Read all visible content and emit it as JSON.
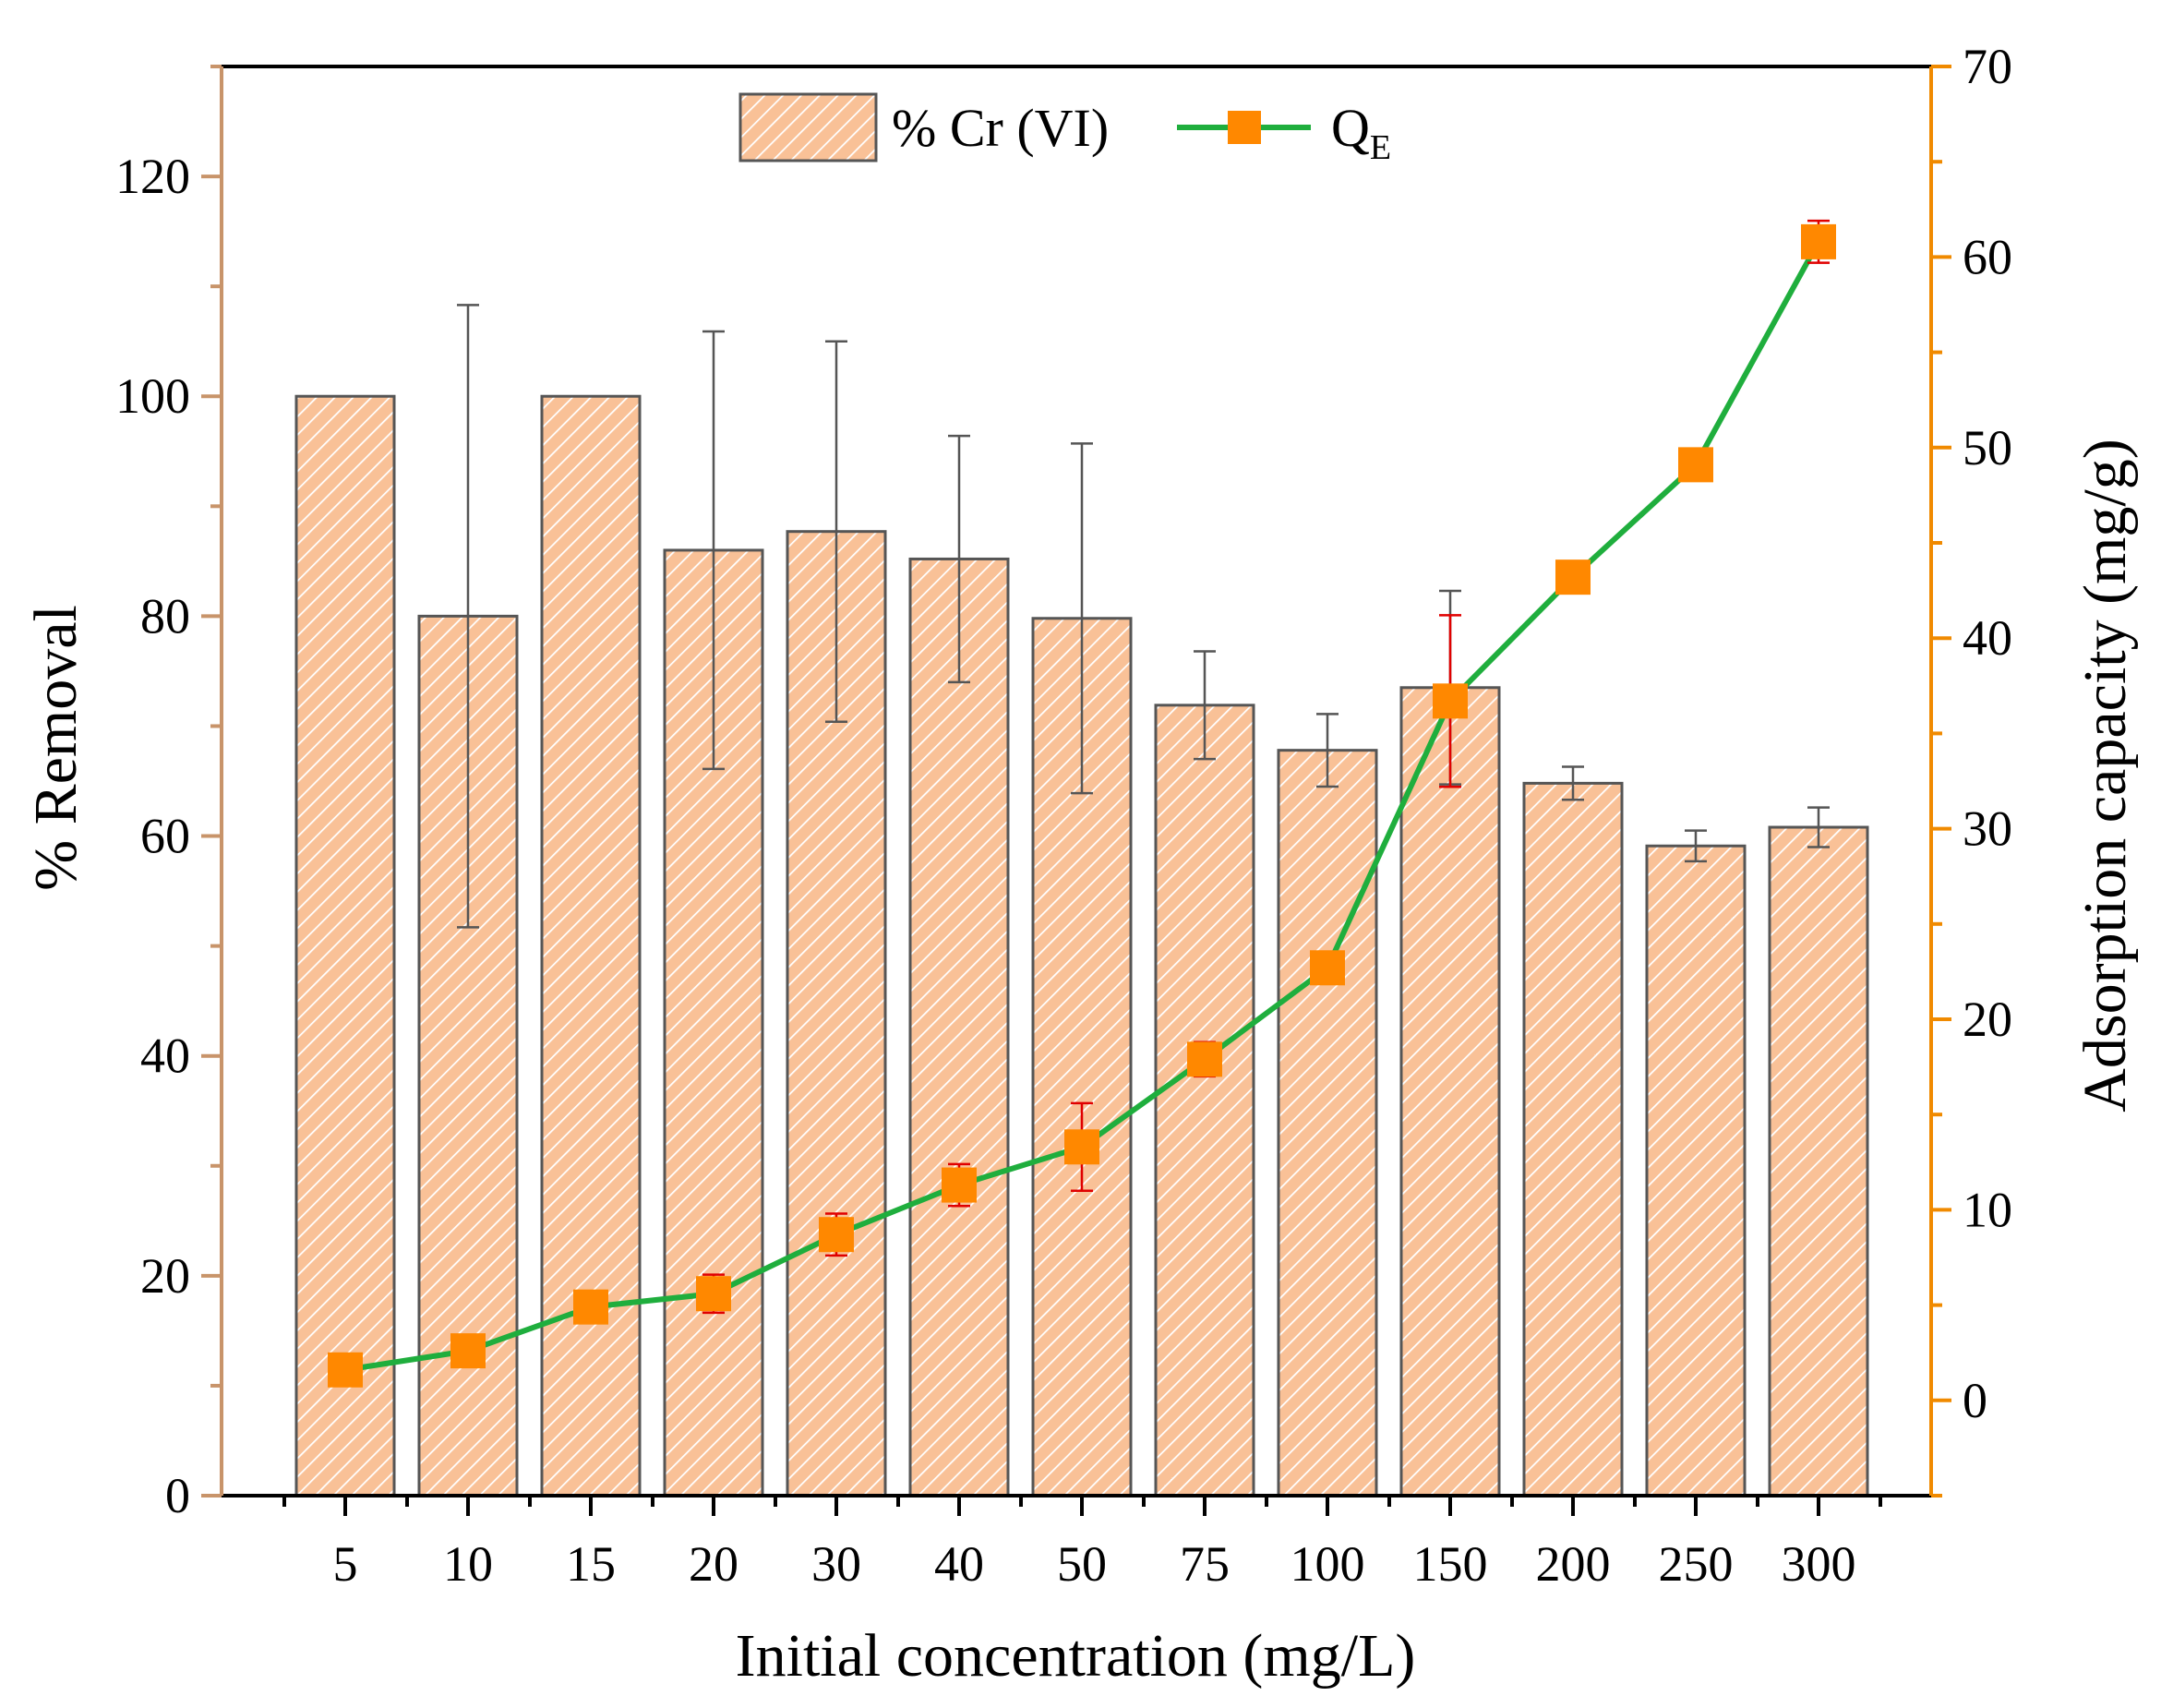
{
  "chart_data": {
    "type": "bar",
    "title": "",
    "xlabel": "Initial concentration (mg/L)",
    "ylabel": "% Removal",
    "y2label": "Adsorption capacity (mg/g)",
    "categories": [
      "5",
      "10",
      "15",
      "20",
      "30",
      "40",
      "50",
      "75",
      "100",
      "150",
      "200",
      "250",
      "300"
    ],
    "ylim": [
      0,
      130
    ],
    "y2lim": [
      -5,
      70
    ],
    "yticks": [
      0,
      20,
      40,
      60,
      80,
      100,
      120
    ],
    "y2ticks": [
      0,
      10,
      20,
      30,
      40,
      50,
      60,
      70
    ],
    "legend_position": "top-center",
    "series": [
      {
        "name": "% Cr (VI)",
        "type": "bar",
        "axis": "left",
        "values": [
          100,
          80,
          100,
          86,
          87.7,
          85.2,
          79.8,
          71.9,
          67.8,
          73.5,
          64.8,
          59.1,
          60.8
        ],
        "error": [
          null,
          28.3,
          null,
          19.9,
          17.3,
          11.2,
          15.9,
          4.9,
          3.3,
          8.8,
          1.5,
          1.4,
          1.8
        ],
        "color": "#f9c197",
        "hatch_color": "#ffffff",
        "edge_color": "#555555",
        "error_color": "#555555"
      },
      {
        "name": "Q",
        "name_sub": "E",
        "type": "line",
        "axis": "right",
        "values": [
          1.6,
          2.6,
          4.9,
          5.6,
          8.7,
          11.3,
          13.3,
          17.9,
          22.7,
          36.7,
          43.2,
          49.1,
          60.8
        ],
        "error": [
          null,
          0.6,
          null,
          1.0,
          1.1,
          1.1,
          2.3,
          0.9,
          0.8,
          4.5,
          0.7,
          0.8,
          1.1
        ],
        "line_color": "#1fae3d",
        "marker_color": "#ff8800",
        "error_color": "#e00000"
      }
    ],
    "axis_colors": {
      "left": "#c8946a",
      "right": "#f08a00",
      "frame": "#000000"
    }
  }
}
